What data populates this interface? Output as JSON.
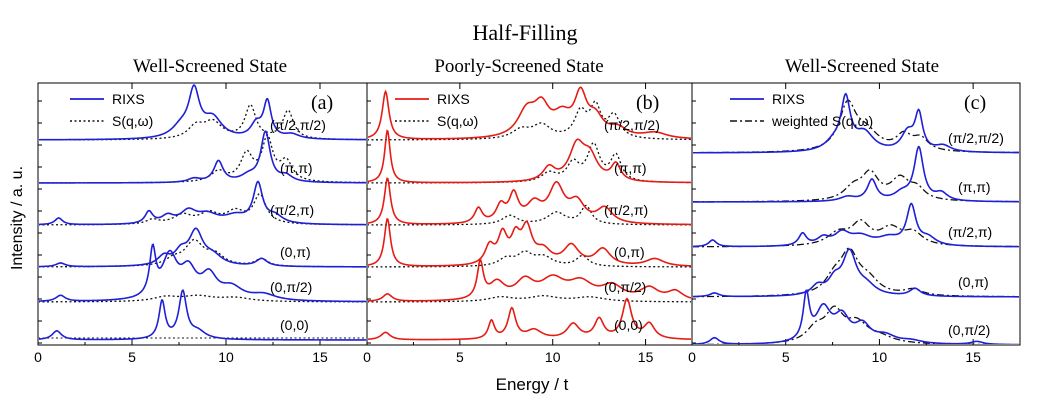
{
  "figure": {
    "title": "Half-Filling",
    "xlabel": "Energy / t",
    "ylabel": "Intensity / a. u."
  },
  "chart_data": [
    {
      "type": "line",
      "id": "a",
      "panel_label": "(a)",
      "title": "Well-Screened State",
      "xlim": [
        0,
        17.5
      ],
      "xticks": [
        0,
        5,
        10,
        15
      ],
      "legend": [
        "RIXS",
        "S(q,ω)"
      ],
      "colors": {
        "rixs": "#1f1fd6",
        "sqw": "#111111"
      },
      "series": [
        {
          "label": "(π/2,π/2)",
          "rixs_peaks": [
            [
              7.6,
              0.7,
              0.6
            ],
            [
              8.3,
              3.0,
              0.35
            ],
            [
              9.3,
              1.3,
              0.6
            ],
            [
              11.6,
              0.9,
              0.35
            ],
            [
              12.2,
              2.4,
              0.25
            ],
            [
              13.5,
              0.3,
              0.5
            ]
          ],
          "sqw_peaks": [
            [
              8.4,
              0.8,
              0.5
            ],
            [
              9.3,
              1.1,
              0.6
            ],
            [
              11.3,
              2.2,
              0.35
            ],
            [
              13.3,
              1.9,
              0.35
            ]
          ]
        },
        {
          "label": "(π,π)",
          "rixs_peaks": [
            [
              8.3,
              0.25,
              0.4
            ],
            [
              9.6,
              1.4,
              0.3
            ],
            [
              11.2,
              0.4,
              0.5
            ],
            [
              12.1,
              3.3,
              0.3
            ],
            [
              13.2,
              0.4,
              0.4
            ]
          ],
          "sqw_peaks": [
            [
              9.6,
              0.7,
              0.5
            ],
            [
              11.1,
              1.8,
              0.4
            ],
            [
              12.2,
              2.8,
              0.35
            ],
            [
              13.2,
              1.3,
              0.4
            ]
          ]
        },
        {
          "label": "(π/2,π)",
          "rixs_peaks": [
            [
              1.1,
              0.45,
              0.25
            ],
            [
              5.9,
              0.8,
              0.25
            ],
            [
              6.9,
              0.5,
              0.4
            ],
            [
              8.0,
              0.8,
              0.5
            ],
            [
              9.0,
              0.6,
              0.7
            ],
            [
              10.5,
              0.5,
              0.7
            ],
            [
              11.7,
              2.6,
              0.3
            ],
            [
              12.6,
              0.5,
              0.5
            ]
          ],
          "sqw_peaks": [
            [
              6.1,
              0.3,
              0.4
            ],
            [
              7.7,
              0.6,
              0.6
            ],
            [
              9.1,
              0.7,
              0.6
            ],
            [
              10.5,
              0.8,
              0.6
            ],
            [
              11.8,
              1.9,
              0.4
            ]
          ]
        },
        {
          "label": "(0,π)",
          "rixs_peaks": [
            [
              1.2,
              0.25,
              0.3
            ],
            [
              6.7,
              0.6,
              0.4
            ],
            [
              7.6,
              0.8,
              0.4
            ],
            [
              8.4,
              2.2,
              0.45
            ],
            [
              9.3,
              0.6,
              0.6
            ],
            [
              11.9,
              0.5,
              0.35
            ]
          ],
          "sqw_peaks": [
            [
              7.2,
              0.4,
              0.5
            ],
            [
              8.3,
              1.6,
              0.6
            ],
            [
              9.4,
              0.7,
              0.6
            ],
            [
              11.9,
              0.5,
              0.4
            ]
          ]
        },
        {
          "label": "(0,π/2)",
          "rixs_peaks": [
            [
              1.2,
              0.4,
              0.3
            ],
            [
              6.1,
              3.0,
              0.2
            ],
            [
              7.0,
              2.8,
              0.5
            ],
            [
              8.0,
              1.8,
              0.5
            ],
            [
              9.1,
              1.5,
              0.5
            ],
            [
              10.3,
              0.8,
              0.7
            ],
            [
              12.0,
              0.4,
              0.8
            ]
          ],
          "sqw_peaks": [
            [
              6.8,
              0.3,
              0.8
            ],
            [
              8.5,
              0.35,
              1.0
            ],
            [
              10.5,
              0.25,
              1.0
            ]
          ]
        },
        {
          "label": "(0,0)",
          "rixs_peaks": [
            [
              1.0,
              0.6,
              0.3
            ],
            [
              6.6,
              2.5,
              0.2
            ],
            [
              7.7,
              3.1,
              0.25
            ],
            [
              8.5,
              0.5,
              0.5
            ]
          ],
          "sqw_peaks": []
        }
      ]
    },
    {
      "type": "line",
      "id": "b",
      "panel_label": "(b)",
      "title": "Poorly-Screened State",
      "xlim": [
        0,
        17.5
      ],
      "xticks": [
        0,
        5,
        10,
        15
      ],
      "legend": [
        "RIXS",
        "S(q,ω)"
      ],
      "colors": {
        "rixs": "#e51c14",
        "sqw": "#111111"
      },
      "series": [
        {
          "label": "(π/2,π/2)",
          "rixs_peaks": [
            [
              1.0,
              3.2,
              0.22
            ],
            [
              8.6,
              1.7,
              0.6
            ],
            [
              9.4,
              1.8,
              0.5
            ],
            [
              10.5,
              1.3,
              0.6
            ],
            [
              11.5,
              2.6,
              0.4
            ],
            [
              12.3,
              1.2,
              0.5
            ],
            [
              13.5,
              0.6,
              0.6
            ],
            [
              15.5,
              0.4,
              0.8
            ]
          ],
          "sqw_peaks": [
            [
              8.3,
              0.6,
              0.6
            ],
            [
              9.4,
              0.9,
              0.6
            ],
            [
              11.5,
              1.7,
              0.4
            ],
            [
              12.3,
              2.0,
              0.35
            ],
            [
              13.3,
              1.5,
              0.4
            ]
          ]
        },
        {
          "label": "(π,π)",
          "rixs_peaks": [
            [
              1.1,
              3.5,
              0.18
            ],
            [
              9.8,
              0.9,
              0.4
            ],
            [
              11.3,
              2.3,
              0.5
            ],
            [
              12.0,
              1.5,
              0.5
            ],
            [
              13.4,
              1.1,
              0.3
            ]
          ],
          "sqw_peaks": [
            [
              9.8,
              0.6,
              0.5
            ],
            [
              11.1,
              1.2,
              0.4
            ],
            [
              12.2,
              2.4,
              0.4
            ],
            [
              13.4,
              1.7,
              0.35
            ]
          ]
        },
        {
          "label": "(π/2,π)",
          "rixs_peaks": [
            [
              1.1,
              3.1,
              0.2
            ],
            [
              6.0,
              1.0,
              0.25
            ],
            [
              7.2,
              1.1,
              0.3
            ],
            [
              7.9,
              1.8,
              0.3
            ],
            [
              9.0,
              1.2,
              0.5
            ],
            [
              10.2,
              2.4,
              0.5
            ],
            [
              11.3,
              1.3,
              0.5
            ],
            [
              12.8,
              1.0,
              0.5
            ]
          ],
          "sqw_peaks": [
            [
              7.7,
              0.6,
              0.5
            ],
            [
              10.2,
              0.8,
              0.6
            ],
            [
              11.8,
              1.2,
              0.35
            ]
          ]
        },
        {
          "label": "(0,π)",
          "rixs_peaks": [
            [
              1.1,
              3.2,
              0.2
            ],
            [
              6.6,
              1.2,
              0.3
            ],
            [
              7.3,
              1.9,
              0.3
            ],
            [
              8.0,
              1.6,
              0.3
            ],
            [
              8.6,
              2.3,
              0.35
            ],
            [
              9.5,
              0.9,
              0.5
            ],
            [
              11.0,
              1.3,
              0.5
            ],
            [
              12.7,
              1.1,
              0.5
            ],
            [
              15.5,
              0.5,
              0.6
            ]
          ],
          "sqw_peaks": [
            [
              7.5,
              0.5,
              0.5
            ],
            [
              8.5,
              0.8,
              0.5
            ],
            [
              9.5,
              0.6,
              0.6
            ],
            [
              11.6,
              0.7,
              0.4
            ]
          ]
        },
        {
          "label": "(0,π/2)",
          "rixs_peaks": [
            [
              1.1,
              0.5,
              0.3
            ],
            [
              6.1,
              2.4,
              0.2
            ],
            [
              7.0,
              1.1,
              0.5
            ],
            [
              8.5,
              1.2,
              0.6
            ],
            [
              10.0,
              1.3,
              0.8
            ],
            [
              11.5,
              1.1,
              0.8
            ],
            [
              13.2,
              0.9,
              0.7
            ],
            [
              15.2,
              0.8,
              0.6
            ],
            [
              16.6,
              0.6,
              0.5
            ]
          ],
          "sqw_peaks": [
            [
              7.2,
              0.3,
              0.8
            ],
            [
              9.5,
              0.35,
              0.9
            ],
            [
              12.0,
              0.3,
              1.0
            ]
          ]
        },
        {
          "label": "(0,0)",
          "rixs_peaks": [
            [
              1.0,
              0.5,
              0.3
            ],
            [
              6.7,
              1.2,
              0.2
            ],
            [
              7.8,
              2.0,
              0.25
            ],
            [
              9.0,
              0.6,
              0.5
            ],
            [
              11.1,
              1.0,
              0.4
            ],
            [
              12.5,
              1.3,
              0.3
            ],
            [
              14.0,
              2.6,
              0.3
            ],
            [
              15.2,
              1.0,
              0.35
            ]
          ],
          "sqw_peaks": []
        }
      ]
    },
    {
      "type": "line",
      "id": "c",
      "panel_label": "(c)",
      "title": "Well-Screened State",
      "xlim": [
        0,
        17.5
      ],
      "xticks": [
        0,
        5,
        10,
        15
      ],
      "legend": [
        "RIXS",
        "weighted S(q,ω)"
      ],
      "colors": {
        "rixs": "#1f1fd6",
        "sqw": "#111111"
      },
      "series": [
        {
          "label": "(π/2,π/2)",
          "rixs_peaks": [
            [
              7.6,
              0.6,
              0.6
            ],
            [
              8.2,
              3.3,
              0.3
            ],
            [
              9.2,
              1.2,
              0.6
            ],
            [
              11.5,
              1.2,
              0.4
            ],
            [
              12.1,
              2.4,
              0.25
            ],
            [
              13.4,
              0.4,
              0.5
            ]
          ],
          "sqw_peaks": [
            [
              8.3,
              3.0,
              0.55
            ],
            [
              9.3,
              1.2,
              0.8
            ],
            [
              11.3,
              1.0,
              0.5
            ],
            [
              12.2,
              0.8,
              0.5
            ]
          ]
        },
        {
          "label": "(π,π)",
          "rixs_peaks": [
            [
              8.3,
              0.3,
              0.5
            ],
            [
              9.6,
              1.4,
              0.3
            ],
            [
              11.2,
              0.5,
              0.5
            ],
            [
              12.1,
              3.5,
              0.3
            ],
            [
              13.3,
              0.5,
              0.4
            ]
          ],
          "sqw_peaks": [
            [
              8.6,
              0.8,
              0.6
            ],
            [
              9.5,
              1.7,
              0.55
            ],
            [
              11.1,
              1.4,
              0.6
            ],
            [
              12.0,
              0.7,
              0.5
            ]
          ]
        },
        {
          "label": "(π/2,π)",
          "rixs_peaks": [
            [
              1.1,
              0.45,
              0.25
            ],
            [
              5.9,
              0.8,
              0.25
            ],
            [
              7.0,
              0.5,
              0.4
            ],
            [
              8.0,
              0.8,
              0.5
            ],
            [
              9.0,
              0.6,
              0.7
            ],
            [
              10.5,
              0.5,
              0.7
            ],
            [
              11.7,
              2.6,
              0.3
            ],
            [
              12.6,
              0.5,
              0.5
            ]
          ],
          "sqw_peaks": [
            [
              7.8,
              0.8,
              0.7
            ],
            [
              9.0,
              1.4,
              0.6
            ],
            [
              10.6,
              1.1,
              0.7
            ],
            [
              11.8,
              0.8,
              0.6
            ]
          ]
        },
        {
          "label": "(0,π)",
          "rixs_peaks": [
            [
              1.2,
              0.25,
              0.3
            ],
            [
              6.7,
              0.6,
              0.4
            ],
            [
              7.6,
              0.9,
              0.4
            ],
            [
              8.4,
              2.8,
              0.45
            ],
            [
              9.3,
              0.6,
              0.6
            ],
            [
              11.9,
              0.5,
              0.35
            ]
          ],
          "sqw_peaks": [
            [
              7.6,
              1.0,
              0.6
            ],
            [
              8.4,
              2.6,
              0.6
            ],
            [
              9.4,
              0.9,
              0.7
            ],
            [
              11.8,
              0.4,
              0.6
            ]
          ]
        },
        {
          "label": "(0,π/2)",
          "rixs_peaks": [
            [
              1.2,
              0.45,
              0.3
            ],
            [
              6.1,
              3.0,
              0.2
            ],
            [
              7.0,
              2.2,
              0.5
            ],
            [
              8.0,
              1.6,
              0.5
            ],
            [
              9.1,
              1.1,
              0.5
            ],
            [
              10.3,
              0.5,
              0.7
            ],
            [
              11.7,
              0.2,
              0.7
            ],
            [
              15.2,
              0.2,
              0.4
            ]
          ],
          "sqw_peaks": [
            [
              6.6,
              0.9,
              0.6
            ],
            [
              7.6,
              2.0,
              0.6
            ],
            [
              8.8,
              1.2,
              0.7
            ],
            [
              10.0,
              0.4,
              0.9
            ]
          ]
        }
      ]
    }
  ]
}
